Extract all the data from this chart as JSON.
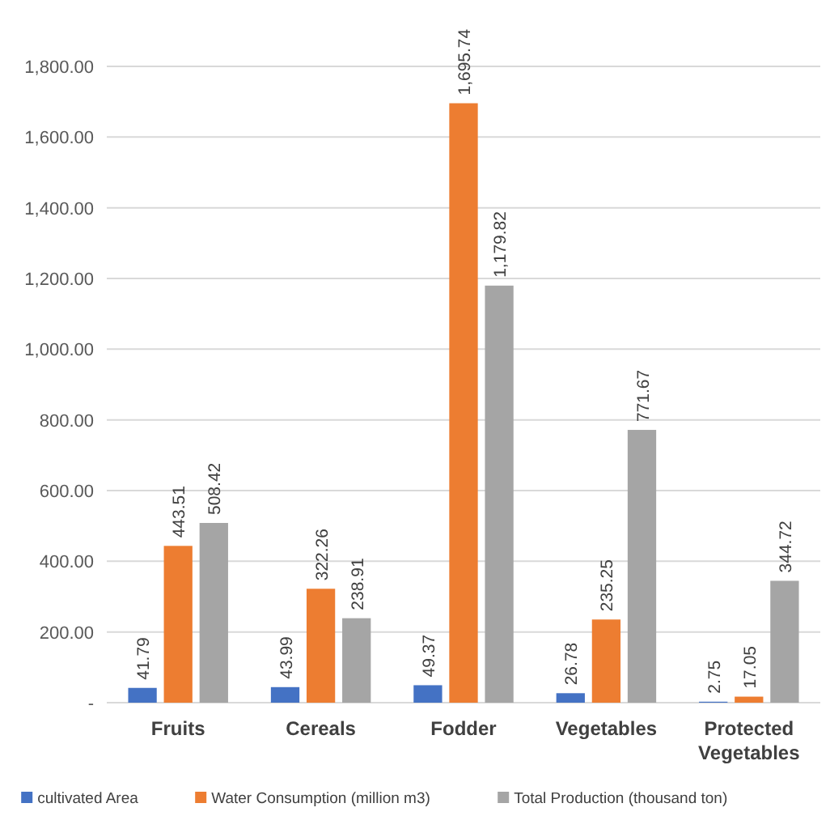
{
  "chart_data": {
    "type": "bar",
    "categories": [
      "Fruits",
      "Cereals",
      "Fodder",
      "Vegetables",
      "Protected Vegetables"
    ],
    "series": [
      {
        "name": "cultivated Area",
        "color": "#4472c4",
        "values": [
          41.79,
          43.99,
          49.37,
          26.78,
          2.75
        ],
        "value_labels": [
          "41.79",
          "43.99",
          "49.37",
          "26.78",
          "2.75"
        ]
      },
      {
        "name": "Water Consumption (million m3)",
        "color": "#ed7d31",
        "values": [
          443.51,
          322.26,
          1695.74,
          235.25,
          17.05
        ],
        "value_labels": [
          "443.51",
          "322.26",
          "1,695.74",
          "235.25",
          "17.05"
        ]
      },
      {
        "name": "Total Production (thousand ton)",
        "color": "#a5a5a5",
        "values": [
          508.42,
          238.91,
          1179.82,
          771.67,
          344.72
        ],
        "value_labels": [
          "508.42",
          "238.91",
          "1,179.82",
          "771.67",
          "344.72"
        ]
      }
    ],
    "ylim": [
      0,
      1800
    ],
    "yticks": [
      {
        "value": 0,
        "label": "-"
      },
      {
        "value": 200,
        "label": "200.00"
      },
      {
        "value": 400,
        "label": "400.00"
      },
      {
        "value": 600,
        "label": "600.00"
      },
      {
        "value": 800,
        "label": "800.00"
      },
      {
        "value": 1000,
        "label": "1,000.00"
      },
      {
        "value": 1200,
        "label": "1,200.00"
      },
      {
        "value": 1400,
        "label": "1,400.00"
      },
      {
        "value": 1600,
        "label": "1,600.00"
      },
      {
        "value": 1800,
        "label": "1,800.00"
      }
    ],
    "grid": "y",
    "legend": "bottom"
  }
}
